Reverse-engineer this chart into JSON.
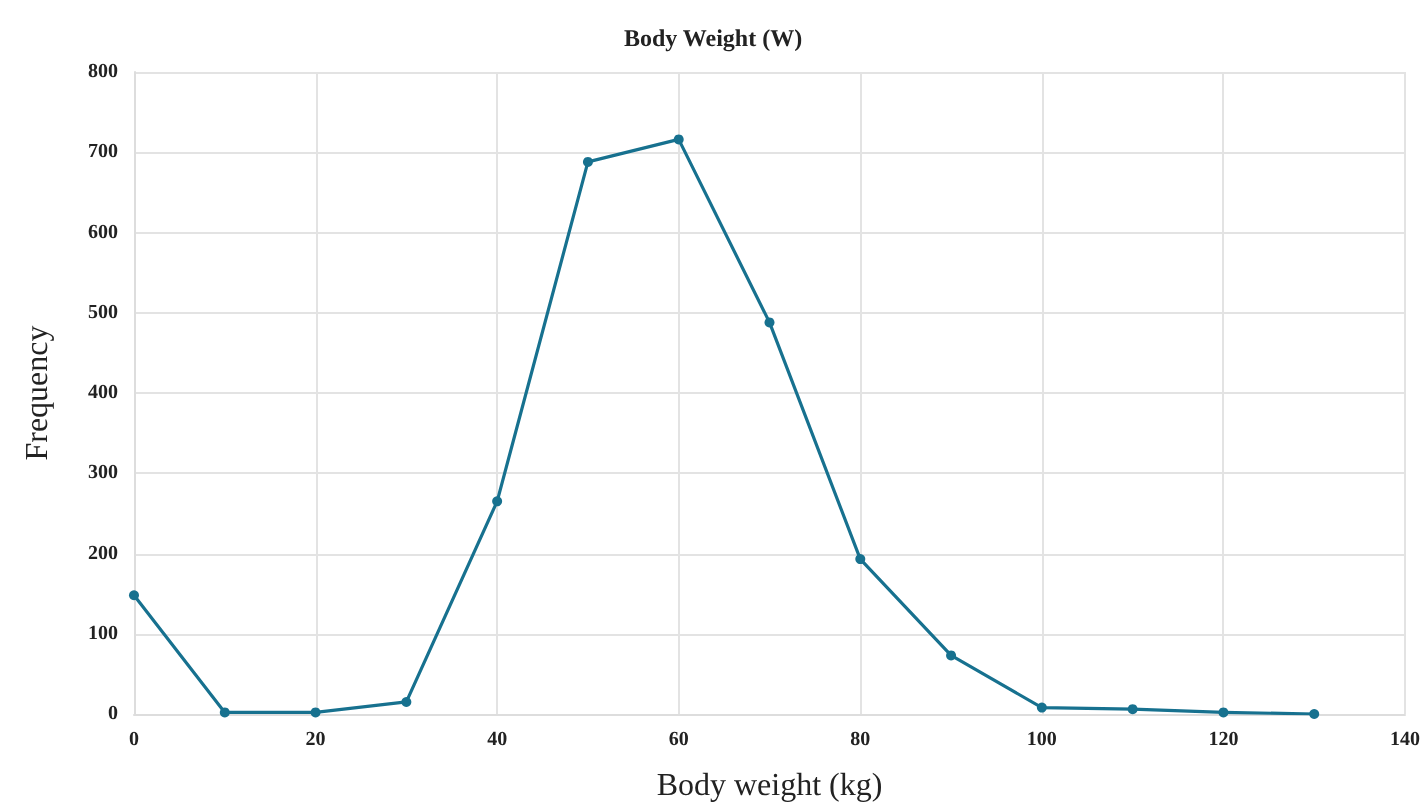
{
  "chart_data": {
    "type": "line",
    "title": "Body Weight (W)",
    "xlabel": "Body weight (kg)",
    "ylabel": "Frequency",
    "x": [
      0,
      10,
      20,
      30,
      40,
      50,
      60,
      70,
      80,
      90,
      100,
      110,
      120,
      130
    ],
    "series": [
      {
        "color": "#17718f",
        "values": [
          148,
          2,
          2,
          15,
          265,
          688,
          716,
          488,
          193,
          73,
          8,
          6,
          2,
          0
        ]
      }
    ],
    "xlim": [
      0,
      140
    ],
    "xticks": [
      0,
      20,
      40,
      60,
      80,
      100,
      120,
      140
    ],
    "ylim": [
      0,
      800
    ],
    "yticks": [
      0,
      100,
      200,
      300,
      400,
      500,
      600,
      700,
      800
    ],
    "grid": true,
    "marker": "circle",
    "line_style": "solid"
  }
}
